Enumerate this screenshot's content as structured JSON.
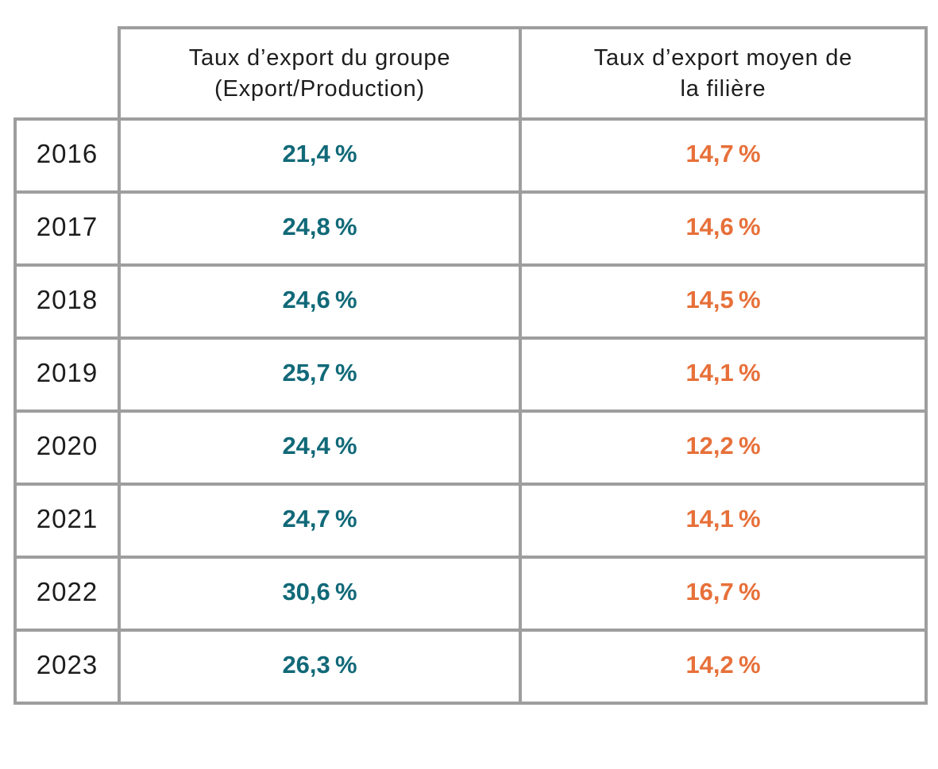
{
  "colors": {
    "group_value": "#116978",
    "sector_value": "#e7703a",
    "border": "#9e9e9e",
    "text": "#1d1d1d"
  },
  "table": {
    "header_group": {
      "label": "Taux d’export du groupe (Export/Production)",
      "line1": "Taux d’export du groupe",
      "line2": "(Export/Production)"
    },
    "header_sector": {
      "label": "Taux d’export moyen de la filière",
      "line1": "Taux d’export moyen de",
      "line2": "la filière"
    },
    "rows": [
      {
        "year": "2016",
        "group": "21,4 %",
        "sector": "14,7 %"
      },
      {
        "year": "2017",
        "group": "24,8 %",
        "sector": "14,6 %"
      },
      {
        "year": "2018",
        "group": "24,6 %",
        "sector": "14,5 %"
      },
      {
        "year": "2019",
        "group": "25,7 %",
        "sector": "14,1 %"
      },
      {
        "year": "2020",
        "group": "24,4 %",
        "sector": "12,2 %"
      },
      {
        "year": "2021",
        "group": "24,7 %",
        "sector": "14,1 %"
      },
      {
        "year": "2022",
        "group": "30,6 %",
        "sector": "16,7 %"
      },
      {
        "year": "2023",
        "group": "26,3 %",
        "sector": "14,2 %"
      }
    ]
  },
  "chart_data": {
    "type": "table",
    "categories": [
      "2016",
      "2017",
      "2018",
      "2019",
      "2020",
      "2021",
      "2022",
      "2023"
    ],
    "series": [
      {
        "name": "Taux d’export du groupe (Export/Production)",
        "values": [
          21.4,
          24.8,
          24.6,
          25.7,
          24.4,
          24.7,
          30.6,
          26.3
        ]
      },
      {
        "name": "Taux d’export moyen de la filière",
        "values": [
          14.7,
          14.6,
          14.5,
          14.1,
          12.2,
          14.1,
          16.7,
          14.2
        ]
      }
    ],
    "unit": "%",
    "title": "",
    "layout": {
      "row_header": "year",
      "grid": true
    }
  }
}
